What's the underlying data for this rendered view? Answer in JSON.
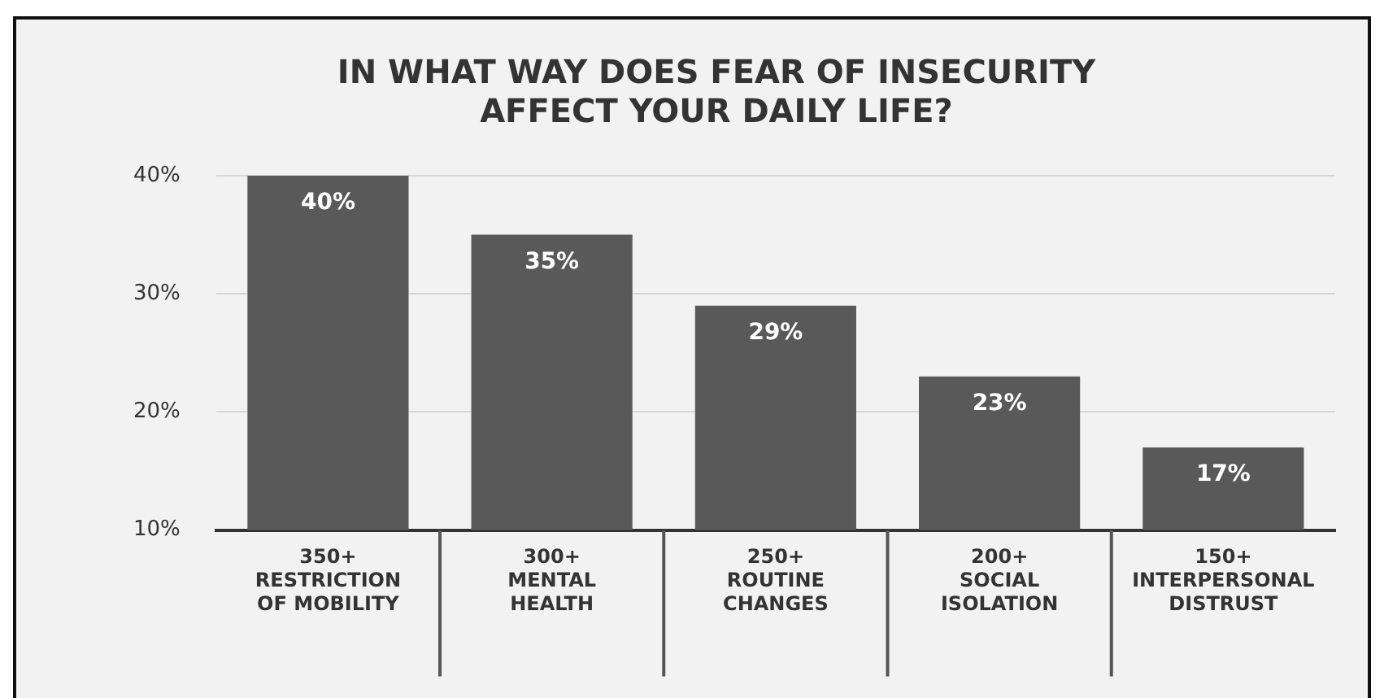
{
  "chart_data": {
    "type": "bar",
    "title": "IN WHAT WAY DOES FEAR OF INSECURITY\nAFFECT YOUR DAILY LIFE?",
    "categories": [
      "350+\nRESTRICTION\nOF MOBILITY",
      "300+\nMENTAL\nHEALTH",
      "250+\nROUTINE\nCHANGES",
      "200+\nSOCIAL\nISOLATION",
      "150+\nINTERPERSONAL\nDISTRUST"
    ],
    "values": [
      40,
      35,
      29,
      23,
      17
    ],
    "color": "#595959",
    "ylim": [
      10,
      40
    ],
    "yticks": [
      {
        "value": 10,
        "label": "10%"
      },
      {
        "value": 20,
        "label": "20%"
      },
      {
        "value": 30,
        "label": "30%"
      },
      {
        "value": 40,
        "label": "40%"
      }
    ],
    "value_labels": [
      "40%",
      "35%",
      "29%",
      "23%",
      "17%"
    ],
    "grid": "y"
  }
}
